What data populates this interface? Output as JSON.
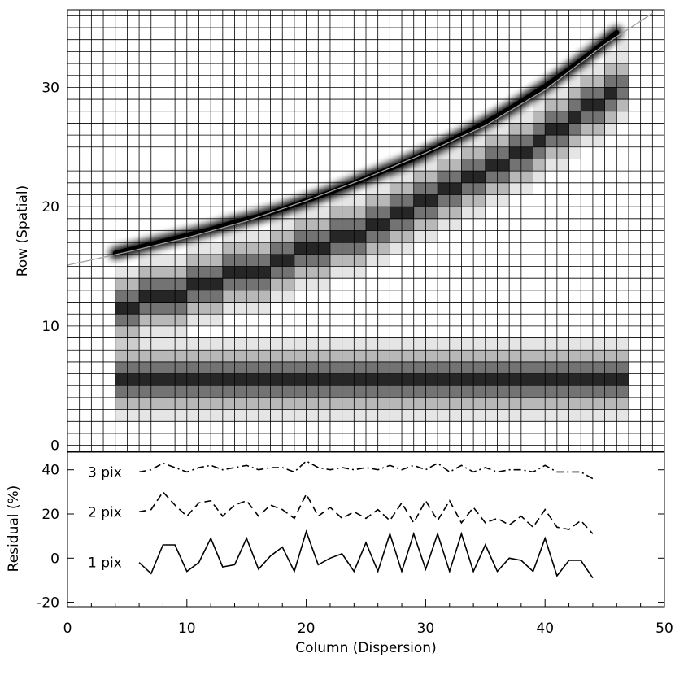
{
  "chart_data": [
    {
      "type": "heatmap",
      "panel": "top",
      "xlabel": "",
      "ylabel": "Row (Spatial)",
      "xlim": [
        0,
        50
      ],
      "ylim": [
        -0.5,
        36.5
      ],
      "y_ticks": [
        0,
        10,
        20,
        30
      ],
      "grid": true,
      "pixel_grid_step": 1,
      "traces": [
        {
          "kind": "smooth",
          "x": [
            4,
            6,
            8,
            10,
            12,
            14,
            16,
            18,
            20,
            22,
            24,
            26,
            28,
            30,
            32,
            34,
            36,
            38,
            40,
            42,
            44,
            46
          ],
          "y": [
            16.1,
            16.6,
            17.1,
            17.6,
            18.1,
            18.7,
            19.2,
            19.8,
            20.5,
            21.2,
            22.0,
            22.8,
            23.6,
            24.5,
            25.5,
            26.5,
            27.6,
            28.8,
            30.1,
            31.5,
            33.0,
            34.6
          ]
        },
        {
          "kind": "pixelated",
          "x": [
            4,
            6,
            8,
            10,
            12,
            14,
            16,
            18,
            20,
            22,
            24,
            26,
            28,
            30,
            32,
            34,
            36,
            38,
            40,
            42,
            44,
            46
          ],
          "y": [
            11.0,
            11.5,
            12.0,
            12.5,
            13.0,
            13.7,
            14.3,
            15.0,
            15.7,
            16.4,
            17.2,
            18.0,
            18.8,
            19.8,
            20.8,
            21.8,
            22.9,
            24.0,
            25.3,
            26.6,
            28.0,
            29.5
          ]
        },
        {
          "kind": "pixelated",
          "x": [
            4,
            46
          ],
          "y": [
            5.0,
            5.0
          ]
        }
      ],
      "model_curve": {
        "x": [
          0,
          5,
          10,
          15,
          20,
          25,
          30,
          35,
          40,
          45,
          49.3
        ],
        "y": [
          15.1,
          16.2,
          17.4,
          18.8,
          20.5,
          22.4,
          24.5,
          26.8,
          29.8,
          33.6,
          36.4
        ]
      }
    },
    {
      "type": "line",
      "panel": "bottom",
      "xlabel": "Column (Dispersion)",
      "ylabel": "Residual (%)",
      "xlim": [
        0,
        50
      ],
      "ylim": [
        -22,
        48
      ],
      "x_ticks": [
        0,
        10,
        20,
        30,
        40,
        50
      ],
      "y_ticks": [
        -20,
        0,
        20,
        40
      ],
      "x": [
        6,
        7,
        8,
        9,
        10,
        11,
        12,
        13,
        14,
        15,
        16,
        17,
        18,
        19,
        20,
        21,
        22,
        23,
        24,
        25,
        26,
        27,
        28,
        29,
        30,
        31,
        32,
        33,
        34,
        35,
        36,
        37,
        38,
        39,
        40,
        41,
        42,
        43,
        44
      ],
      "series": [
        {
          "name": "1 pix",
          "style": "solid",
          "values": [
            -2,
            -7,
            6,
            6,
            -6,
            -2,
            9,
            -4,
            -3,
            9,
            -5,
            1,
            5,
            -6,
            12,
            -3,
            0,
            2,
            -6,
            7,
            -6,
            11,
            -6,
            11,
            -5,
            11,
            -6,
            11,
            -6,
            6,
            -6,
            0,
            -1,
            -6,
            9,
            -8,
            -1,
            -1,
            -9
          ]
        },
        {
          "name": "2 pix",
          "style": "dashed",
          "values": [
            21,
            22,
            30,
            24,
            19,
            25,
            26,
            19,
            24,
            26,
            19,
            24,
            22,
            18,
            29,
            19,
            23,
            18,
            21,
            18,
            22,
            17,
            25,
            16,
            26,
            17,
            26,
            16,
            23,
            16,
            18,
            15,
            19,
            14,
            22,
            14,
            13,
            17,
            11
          ]
        },
        {
          "name": "3 pix",
          "style": "dash-dot",
          "values": [
            39,
            40,
            43,
            41,
            39,
            41,
            42,
            40,
            41,
            42,
            40,
            41,
            41,
            39,
            44,
            41,
            40,
            41,
            40,
            41,
            40,
            42,
            40,
            42,
            40,
            43,
            39,
            42,
            39,
            41,
            39,
            40,
            40,
            39,
            42,
            39,
            39,
            39,
            36
          ]
        }
      ]
    }
  ]
}
